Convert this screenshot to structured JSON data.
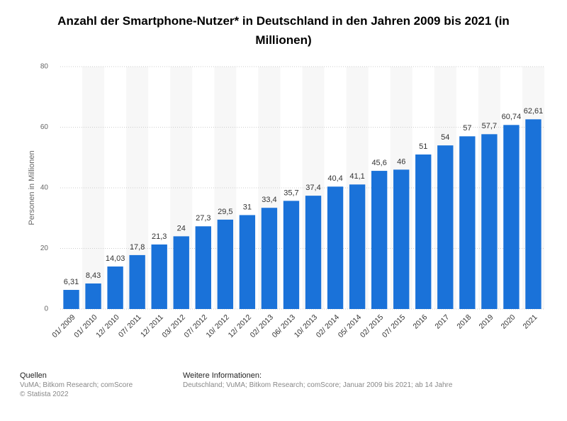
{
  "chart_data": {
    "type": "bar",
    "title": "Anzahl der Smartphone-Nutzer* in Deutschland in den Jahren 2009 bis 2021 (in Millionen)",
    "y_label": "Personen in Millionen",
    "categories": [
      "01/ 2009",
      "01/ 2010",
      "12/ 2010",
      "07/ 2011",
      "12/ 2011",
      "03/ 2012",
      "07/ 2012",
      "10/ 2012",
      "12/ 2012",
      "02/ 2013",
      "06/ 2013",
      "10/ 2013",
      "02/ 2014",
      "05/ 2014",
      "02/ 2015",
      "07/ 2015",
      "2016",
      "2017",
      "2018",
      "2019",
      "2020",
      "2021"
    ],
    "values": [
      6.31,
      8.43,
      14.03,
      17.8,
      21.3,
      24,
      27.3,
      29.5,
      31,
      33.4,
      35.7,
      37.4,
      40.4,
      41.1,
      45.6,
      46,
      51,
      54,
      57,
      57.7,
      60.74,
      62.61
    ],
    "value_labels": [
      "6,31",
      "8,43",
      "14,03",
      "17,8",
      "21,3",
      "24",
      "27,3",
      "29,5",
      "31",
      "33,4",
      "35,7",
      "37,4",
      "40,4",
      "41,1",
      "45,6",
      "46",
      "51",
      "54",
      "57",
      "57,7",
      "60,74",
      "62,61"
    ],
    "color": "#1a72d9",
    "ylim": [
      0,
      80
    ],
    "yticks": [
      0,
      20,
      40,
      60,
      80
    ],
    "grid": true
  },
  "footer": {
    "sources_heading": "Quellen",
    "sources": "VuMA; Bitkom Research; comScore",
    "copyright": "© Statista 2022",
    "info_heading": "Weitere Informationen:",
    "info": "Deutschland; VuMA; Bitkom Research; comScore; Januar 2009 bis 2021; ab 14 Jahre"
  }
}
